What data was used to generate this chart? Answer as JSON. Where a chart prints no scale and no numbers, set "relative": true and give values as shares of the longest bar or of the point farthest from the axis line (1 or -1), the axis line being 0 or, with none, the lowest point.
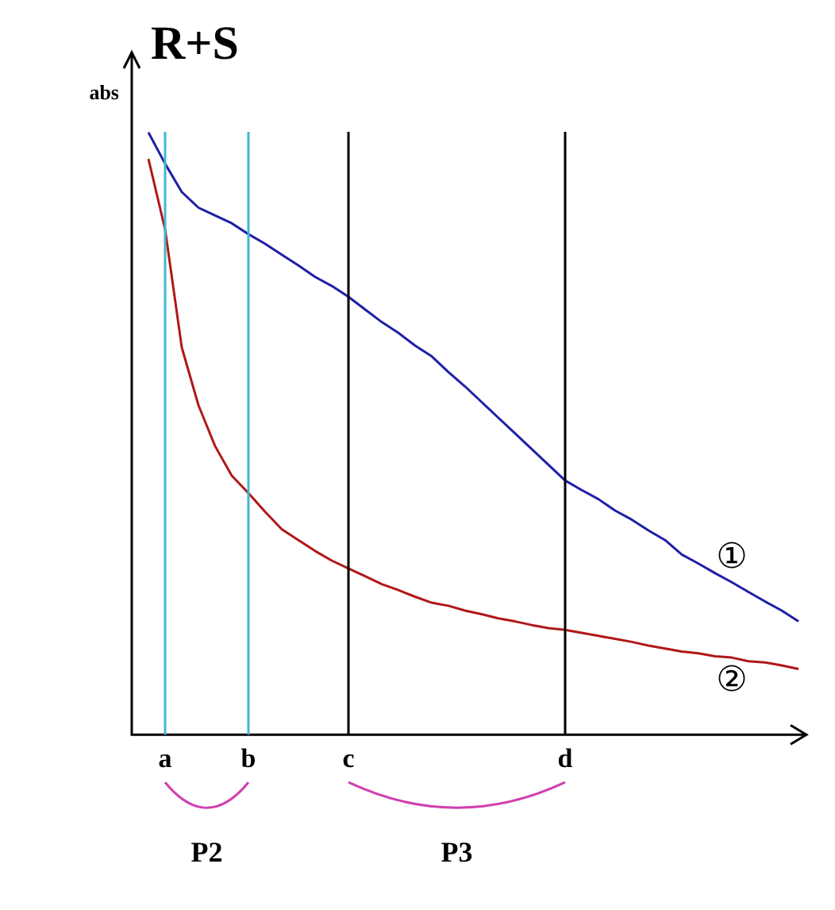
{
  "chart_data": {
    "type": "line",
    "title": "R+S",
    "ylabel": "abs",
    "relative": true,
    "legend": false,
    "marker": "none",
    "categories": [
      null,
      null,
      "a",
      null,
      null,
      null,
      null,
      "b",
      null,
      null,
      null,
      null,
      null,
      "c",
      null,
      null,
      null,
      null,
      null,
      null,
      null,
      null,
      null,
      null,
      null,
      null,
      "d",
      null,
      null,
      null,
      null,
      null,
      null,
      null,
      null,
      null,
      null,
      null,
      null,
      null,
      null
    ],
    "series": [
      {
        "name": "①",
        "color": "#1f1fa8",
        "values": [
          null,
          1.0,
          0.948,
          0.901,
          0.875,
          0.862,
          0.849,
          0.831,
          0.815,
          0.797,
          0.779,
          0.76,
          0.745,
          0.727,
          0.706,
          0.685,
          0.667,
          0.646,
          0.628,
          0.602,
          0.578,
          0.552,
          0.526,
          0.5,
          0.474,
          0.448,
          0.422,
          0.406,
          0.391,
          0.372,
          0.357,
          0.339,
          0.323,
          0.299,
          0.284,
          0.268,
          0.253,
          0.237,
          0.221,
          0.206,
          0.188
        ]
      },
      {
        "name": "②",
        "color": "#b01818",
        "values": [
          null,
          0.956,
          0.839,
          0.643,
          0.547,
          0.479,
          0.43,
          0.401,
          0.37,
          0.341,
          0.323,
          0.305,
          0.289,
          0.276,
          0.263,
          0.25,
          0.24,
          0.229,
          0.219,
          0.214,
          0.206,
          0.2,
          0.193,
          0.188,
          0.182,
          0.177,
          0.174,
          0.169,
          0.164,
          0.159,
          0.154,
          0.148,
          0.143,
          0.138,
          0.135,
          0.13,
          0.128,
          0.122,
          0.12,
          0.115,
          0.109
        ]
      }
    ],
    "ref_lines": [
      {
        "axis": "x",
        "value": "a",
        "color": "#40b8d0"
      },
      {
        "axis": "x",
        "value": "b",
        "color": "#40b8d0"
      },
      {
        "axis": "x",
        "value": "c",
        "color": "#000000"
      },
      {
        "axis": "x",
        "value": "d",
        "color": "#000000"
      }
    ],
    "annotations": [
      "P2",
      "P3"
    ]
  }
}
